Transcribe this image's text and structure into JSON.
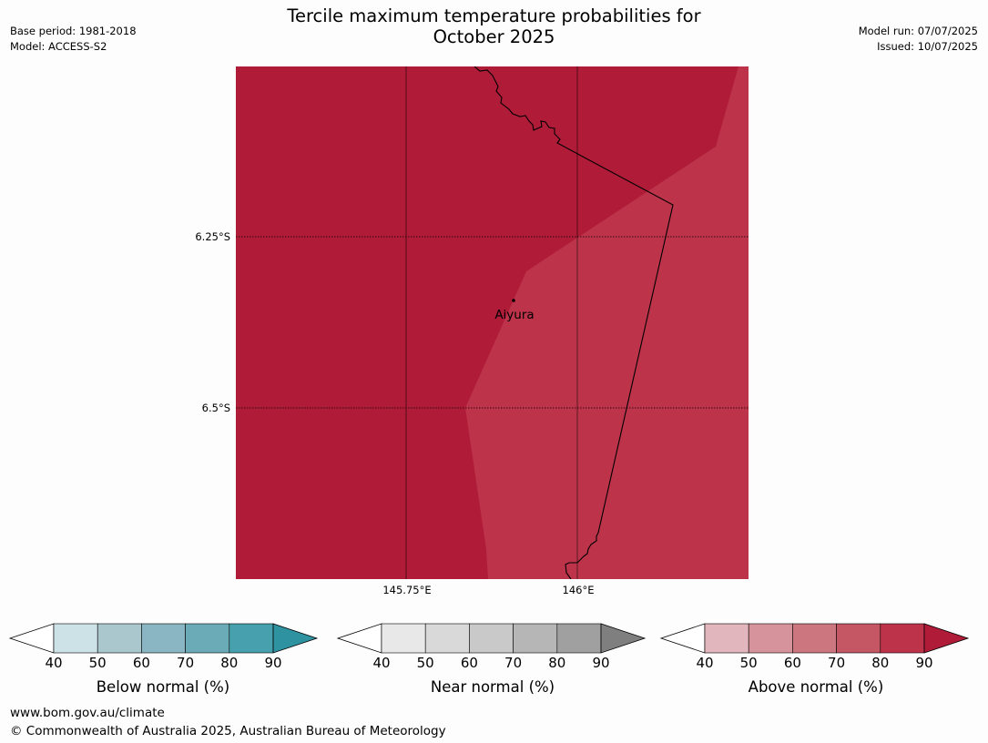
{
  "header": {
    "title_line1": "Tercile maximum temperature probabilities for",
    "title_line2": "October 2025",
    "base_period": "Base period: 1981-2018",
    "model": "Model: ACCESS-S2",
    "model_run": "Model run: 07/07/2025",
    "issued": "Issued: 10/07/2025"
  },
  "map": {
    "lat_labels": [
      "6.25°S",
      "6.5°S"
    ],
    "lon_labels": [
      "145.75°E",
      "146°E"
    ],
    "place": "Aiyura",
    "colors": {
      "above_80_90": "#b01c38",
      "above_70_80": "#bc334a"
    }
  },
  "legends": [
    {
      "title": "Below normal (%)",
      "ticks": [
        "40",
        "50",
        "60",
        "70",
        "80",
        "90"
      ],
      "colors": [
        "#cde2e7",
        "#a9c7cd",
        "#8ab6c3",
        "#6babb8",
        "#47a0ae",
        "#2f92a0"
      ]
    },
    {
      "title": "Near normal (%)",
      "ticks": [
        "40",
        "50",
        "60",
        "70",
        "80",
        "90"
      ],
      "colors": [
        "#e8e8e8",
        "#d9d9d9",
        "#c9c9c9",
        "#b6b6b6",
        "#a0a0a0",
        "#7f7f7f"
      ]
    },
    {
      "title": "Above normal (%)",
      "ticks": [
        "40",
        "50",
        "60",
        "70",
        "80",
        "90"
      ],
      "colors": [
        "#e2b6bd",
        "#d6939c",
        "#cc767f",
        "#c55664",
        "#bc334a",
        "#b01c38"
      ]
    }
  ],
  "footer": {
    "url": "www.bom.gov.au/climate",
    "copyright": "© Commonwealth of Australia 2025, Australian Bureau of Meteorology"
  }
}
